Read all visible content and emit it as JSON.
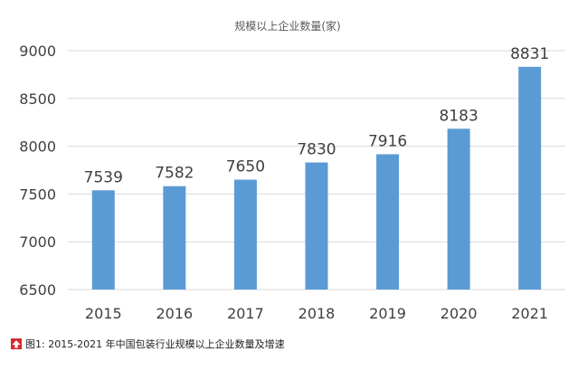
{
  "chart_data": {
    "type": "bar",
    "title": "规模以上企业数量(家)",
    "categories": [
      "2015",
      "2016",
      "2017",
      "2018",
      "2019",
      "2020",
      "2021"
    ],
    "values": [
      7539,
      7582,
      7650,
      7830,
      7916,
      8183,
      8831
    ],
    "ylim": [
      6500,
      9000
    ],
    "yticks": [
      6500,
      7000,
      7500,
      8000,
      8500,
      9000
    ],
    "grid": true,
    "bar_color": "#5b9bd5"
  },
  "caption": {
    "text": "图1: 2015-2021 年中国包装行业规模以上企业数量及增速",
    "mark_color": "#d9282f"
  }
}
